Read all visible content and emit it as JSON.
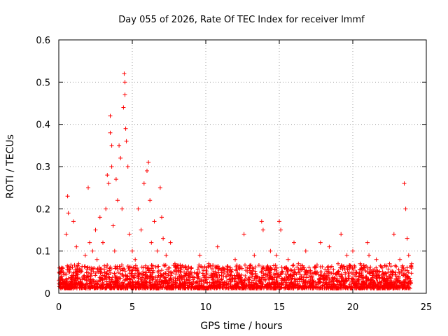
{
  "chart_data": {
    "type": "scatter",
    "title": "Day 055 of 2026, Rate Of TEC Index for receiver lmmf",
    "xlabel": "GPS time / hours",
    "ylabel": "ROTI / TECUs",
    "xlim": [
      0,
      25
    ],
    "ylim": [
      0,
      0.6
    ],
    "x_ticks": [
      0,
      5,
      10,
      15,
      20,
      25
    ],
    "x_tick_labels": [
      "0",
      "5",
      "10",
      "15",
      "20",
      "25"
    ],
    "y_ticks": [
      0,
      0.1,
      0.2,
      0.3,
      0.4,
      0.5,
      0.6
    ],
    "y_tick_labels": [
      "0",
      "0.1",
      "0.2",
      "0.3",
      "0.4",
      "0.5",
      "0.6"
    ],
    "grid": true,
    "marker": "+",
    "color": "#ff0000",
    "series": [
      {
        "name": "ROTI",
        "x": [
          0.05,
          0.15,
          0.3,
          0.5,
          0.6,
          0.65,
          0.7,
          0.8,
          1.0,
          1.2,
          1.35,
          1.5,
          1.8,
          2.0,
          2.1,
          2.2,
          2.3,
          2.5,
          2.6,
          2.8,
          3.0,
          3.2,
          3.3,
          3.4,
          3.5,
          3.5,
          3.6,
          3.6,
          3.7,
          3.8,
          3.9,
          4.0,
          4.1,
          4.2,
          4.3,
          4.4,
          4.45,
          4.5,
          4.5,
          4.55,
          4.6,
          4.7,
          4.8,
          5.0,
          5.2,
          5.4,
          5.6,
          5.8,
          6.0,
          6.1,
          6.2,
          6.3,
          6.5,
          6.7,
          6.9,
          7.0,
          7.1,
          7.3,
          7.6,
          7.9,
          8.3,
          9.0,
          9.6,
          10.2,
          10.8,
          11.5,
          12.0,
          12.6,
          13.0,
          13.3,
          13.8,
          13.9,
          14.4,
          14.8,
          15.0,
          15.1,
          15.6,
          16.0,
          16.3,
          16.8,
          17.4,
          17.8,
          18.4,
          19.0,
          19.2,
          19.6,
          20.0,
          20.5,
          21.0,
          21.1,
          21.6,
          22.0,
          22.5,
          22.8,
          23.2,
          23.5,
          23.6,
          23.7,
          23.8,
          24.0
        ],
        "y": [
          0.06,
          0.04,
          0.05,
          0.14,
          0.23,
          0.19,
          0.05,
          0.06,
          0.17,
          0.11,
          0.07,
          0.05,
          0.09,
          0.25,
          0.12,
          0.06,
          0.1,
          0.15,
          0.08,
          0.18,
          0.12,
          0.2,
          0.28,
          0.26,
          0.42,
          0.38,
          0.35,
          0.3,
          0.16,
          0.1,
          0.27,
          0.22,
          0.35,
          0.32,
          0.2,
          0.44,
          0.52,
          0.5,
          0.47,
          0.39,
          0.36,
          0.3,
          0.14,
          0.1,
          0.08,
          0.2,
          0.15,
          0.26,
          0.29,
          0.31,
          0.22,
          0.12,
          0.17,
          0.1,
          0.25,
          0.18,
          0.13,
          0.09,
          0.12,
          0.07,
          0.05,
          0.06,
          0.09,
          0.07,
          0.11,
          0.06,
          0.08,
          0.14,
          0.05,
          0.09,
          0.17,
          0.15,
          0.1,
          0.09,
          0.17,
          0.15,
          0.08,
          0.12,
          0.07,
          0.1,
          0.06,
          0.12,
          0.11,
          0.07,
          0.14,
          0.09,
          0.1,
          0.07,
          0.12,
          0.09,
          0.08,
          0.06,
          0.07,
          0.14,
          0.08,
          0.26,
          0.2,
          0.13,
          0.09,
          0.07
        ]
      }
    ]
  }
}
